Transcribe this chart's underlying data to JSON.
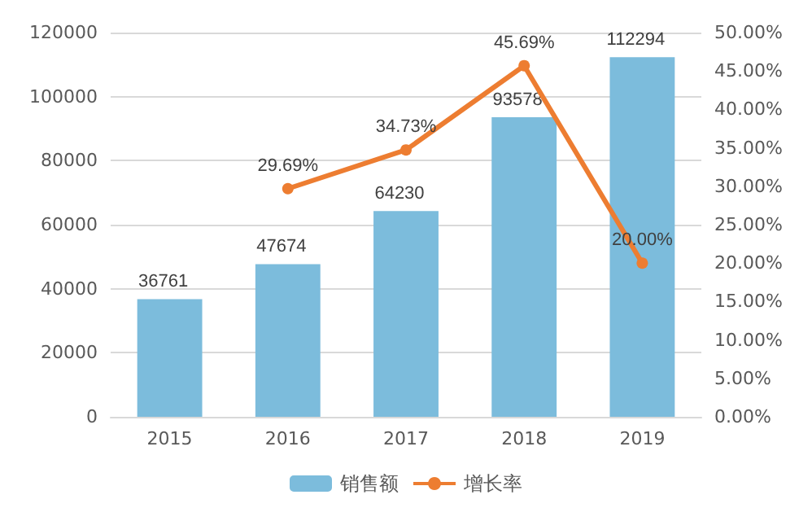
{
  "chart_data": {
    "type": "bar",
    "categories": [
      "2015",
      "2016",
      "2017",
      "2018",
      "2019"
    ],
    "series": [
      {
        "name": "销售额",
        "color": "#7cbcdc",
        "values": [
          36761,
          47674,
          64230,
          93578,
          112294
        ],
        "value_labels": [
          "36761",
          "47674",
          "64230",
          "93578",
          "112294"
        ]
      },
      {
        "name": "增长率",
        "type": "line",
        "axis": "y2",
        "color": "#ed7d31",
        "values": [
          null,
          29.69,
          34.73,
          45.69,
          20.0
        ],
        "value_labels": [
          null,
          "29.69%",
          "34.73%",
          "45.69%",
          "20.00%"
        ]
      }
    ],
    "ylim": [
      0,
      120000
    ],
    "yticks": [
      0,
      20000,
      40000,
      60000,
      80000,
      100000,
      120000
    ],
    "y2lim": [
      0,
      50
    ],
    "y2ticks": [
      {
        "value": 0,
        "label": "0.00%"
      },
      {
        "value": 5,
        "label": "5.00%"
      },
      {
        "value": 10,
        "label": "10.00%"
      },
      {
        "value": 15,
        "label": "15.00%"
      },
      {
        "value": 20,
        "label": "20.00%"
      },
      {
        "value": 25,
        "label": "25.00%"
      },
      {
        "value": 30,
        "label": "30.00%"
      },
      {
        "value": 35,
        "label": "35.00%"
      },
      {
        "value": 40,
        "label": "40.00%"
      },
      {
        "value": 45,
        "label": "45.00%"
      },
      {
        "value": 50,
        "label": "50.00%"
      }
    ],
    "grid": "y",
    "legend": "bottom",
    "marker": "circle",
    "line_style": "solid"
  }
}
